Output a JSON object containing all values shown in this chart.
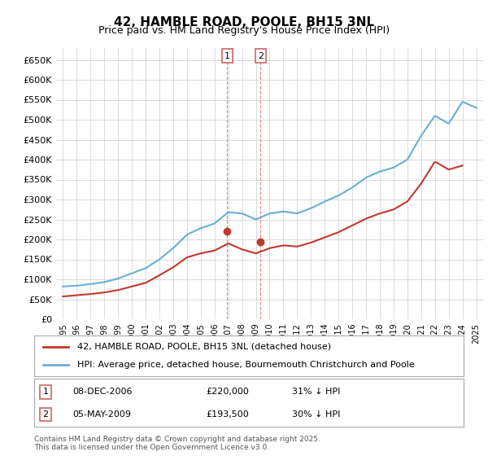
{
  "title": "42, HAMBLE ROAD, POOLE, BH15 3NL",
  "subtitle": "Price paid vs. HM Land Registry's House Price Index (HPI)",
  "hpi_label": "HPI: Average price, detached house, Bournemouth Christchurch and Poole",
  "property_label": "42, HAMBLE ROAD, POOLE, BH15 3NL (detached house)",
  "hpi_color": "#6aaed6",
  "price_color": "#c0392b",
  "marker_color": "#c0392b",
  "background_color": "#ffffff",
  "grid_color": "#cccccc",
  "annotation1": {
    "num": "1",
    "date": "08-DEC-2006",
    "price": "£220,000",
    "note": "31% ↓ HPI"
  },
  "annotation2": {
    "num": "2",
    "date": "05-MAY-2009",
    "price": "£193,500",
    "note": "30% ↓ HPI"
  },
  "footer": "Contains HM Land Registry data © Crown copyright and database right 2025.\nThis data is licensed under the Open Government Licence v3.0.",
  "ylim": [
    0,
    680000
  ],
  "yticks": [
    0,
    50000,
    100000,
    150000,
    200000,
    250000,
    300000,
    350000,
    400000,
    450000,
    500000,
    550000,
    600000,
    650000
  ],
  "hpi_data": {
    "years": [
      1995,
      1996,
      1997,
      1998,
      1999,
      2000,
      2001,
      2002,
      2003,
      2004,
      2005,
      2006,
      2007,
      2008,
      2009,
      2010,
      2011,
      2012,
      2013,
      2014,
      2015,
      2016,
      2017,
      2018,
      2019,
      2020,
      2021,
      2022,
      2023,
      2024,
      2025
    ],
    "values": [
      82000,
      84000,
      88000,
      93000,
      102000,
      115000,
      128000,
      150000,
      178000,
      212000,
      228000,
      240000,
      268000,
      265000,
      250000,
      265000,
      270000,
      265000,
      278000,
      295000,
      310000,
      330000,
      355000,
      370000,
      380000,
      400000,
      460000,
      510000,
      490000,
      545000,
      530000
    ]
  },
  "price_data": {
    "years": [
      1995,
      1996,
      1997,
      1998,
      1999,
      2000,
      2001,
      2002,
      2003,
      2004,
      2005,
      2006,
      2007,
      2008,
      2009,
      2010,
      2011,
      2012,
      2013,
      2014,
      2015,
      2016,
      2017,
      2018,
      2019,
      2020,
      2021,
      2022,
      2023,
      2024
    ],
    "values": [
      57000,
      60000,
      63000,
      67000,
      73000,
      82000,
      91000,
      110000,
      130000,
      155000,
      165000,
      172000,
      190000,
      175000,
      165000,
      178000,
      185000,
      182000,
      192000,
      205000,
      218000,
      235000,
      252000,
      265000,
      275000,
      295000,
      340000,
      395000,
      375000,
      385000
    ]
  },
  "sale1_year": 2006.92,
  "sale1_price": 220000,
  "sale2_year": 2009.35,
  "sale2_price": 193500,
  "vline1_year": 2006.92,
  "vline2_year": 2009.35
}
